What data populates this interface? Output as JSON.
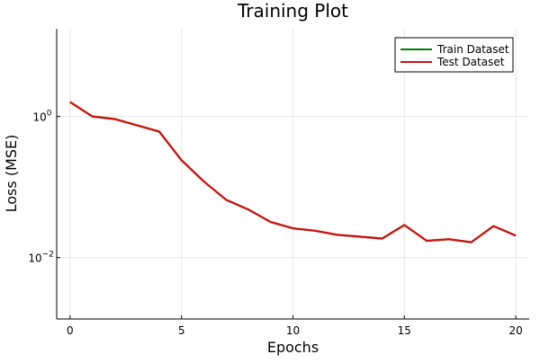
{
  "chart_data": {
    "type": "line",
    "title": "Training Plot",
    "xlabel": "Epochs",
    "ylabel": "Loss (MSE)",
    "y_scale": "log10",
    "xlim": [
      -0.6,
      20.6
    ],
    "ylim": [
      0.00135,
      17.5
    ],
    "grid": true,
    "legend_position": "top-right",
    "x_ticks": [
      0,
      5,
      10,
      15,
      20
    ],
    "x_tick_labels": [
      "0",
      "5",
      "10",
      "15",
      "20"
    ],
    "y_ticks": [
      {
        "value": 1,
        "base": "10",
        "exp": "0"
      },
      {
        "value": 0.01,
        "base": "10",
        "exp": "−2"
      }
    ],
    "x": [
      0,
      1,
      2,
      3,
      4,
      5,
      6,
      7,
      8,
      9,
      10,
      11,
      12,
      13,
      14,
      15,
      16,
      17,
      18,
      19,
      20
    ],
    "series": [
      {
        "name": "Train Dataset",
        "color": "#008000",
        "values": [
          1.6,
          1.0,
          0.92,
          0.75,
          0.61,
          0.24,
          0.12,
          0.066,
          0.048,
          0.032,
          0.026,
          0.024,
          0.021,
          0.0198,
          0.0186,
          0.029,
          0.0173,
          0.0182,
          0.0165,
          0.028,
          0.0205
        ]
      },
      {
        "name": "Test Dataset",
        "color": "#d20f0f",
        "values": [
          1.6,
          1.0,
          0.92,
          0.75,
          0.61,
          0.24,
          0.12,
          0.066,
          0.048,
          0.032,
          0.026,
          0.024,
          0.021,
          0.0198,
          0.0186,
          0.029,
          0.0173,
          0.0182,
          0.0165,
          0.028,
          0.0205
        ]
      }
    ]
  }
}
